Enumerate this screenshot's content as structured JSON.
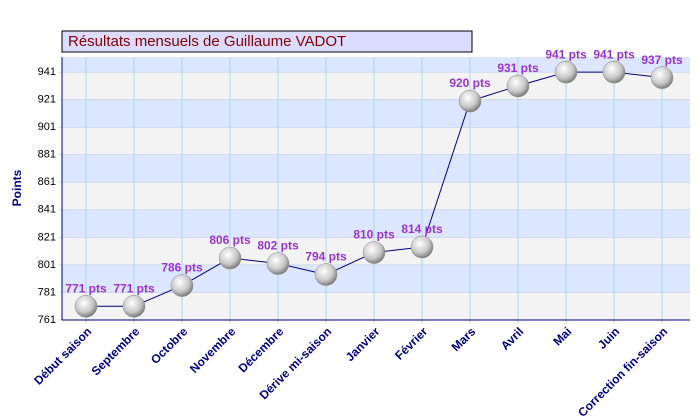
{
  "chart_data": {
    "type": "line",
    "title": "Résultats mensuels de  Guillaume VADOT",
    "y_label": "Points",
    "categories": [
      "Début saison",
      "Septembre",
      "Octobre",
      "Novembre",
      "Décembre",
      "Dérive mi-saison",
      "Janvier",
      "Février",
      "Mars",
      "Avril",
      "Mai",
      "Juin",
      "Correction fin-saison"
    ],
    "values": [
      771,
      771,
      786,
      806,
      802,
      794,
      810,
      814,
      920,
      931,
      941,
      941,
      937
    ],
    "value_labels": [
      "771 pts",
      "771 pts",
      "786 pts",
      "806 pts",
      "802 pts",
      "794 pts",
      "810 pts",
      "814 pts",
      "920 pts",
      "931 pts",
      "941 pts",
      "941 pts",
      "937 pts"
    ],
    "color": "#000080",
    "label_color": "#9933cc",
    "ylim": [
      761,
      952
    ],
    "yticks": [
      761,
      781,
      801,
      821,
      841,
      861,
      881,
      901,
      921,
      941
    ],
    "grid": true
  }
}
